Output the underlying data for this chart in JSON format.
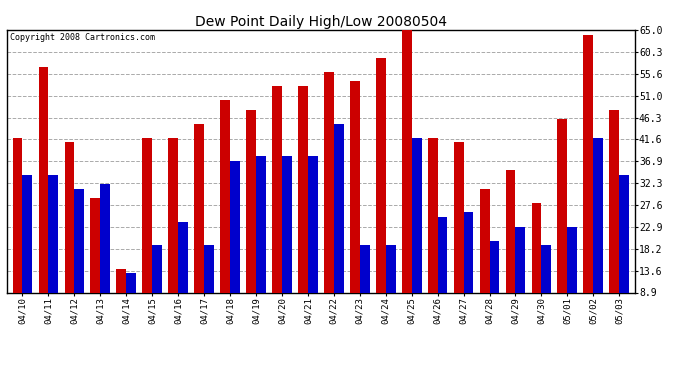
{
  "title": "Dew Point Daily High/Low 20080504",
  "copyright": "Copyright 2008 Cartronics.com",
  "dates": [
    "04/10",
    "04/11",
    "04/12",
    "04/13",
    "04/14",
    "04/15",
    "04/16",
    "04/17",
    "04/18",
    "04/19",
    "04/20",
    "04/21",
    "04/22",
    "04/23",
    "04/24",
    "04/25",
    "04/26",
    "04/27",
    "04/28",
    "04/29",
    "04/30",
    "05/01",
    "05/02",
    "05/03"
  ],
  "highs": [
    42,
    57,
    41,
    29,
    14,
    42,
    42,
    45,
    50,
    48,
    53,
    53,
    56,
    54,
    59,
    65,
    42,
    41,
    31,
    35,
    28,
    46,
    64,
    48
  ],
  "lows": [
    34,
    34,
    31,
    32,
    13,
    19,
    24,
    19,
    37,
    38,
    38,
    38,
    45,
    19,
    19,
    42,
    25,
    26,
    20,
    23,
    19,
    23,
    42,
    34
  ],
  "high_color": "#cc0000",
  "low_color": "#0000cc",
  "bg_color": "#ffffff",
  "plot_bg_color": "#ffffff",
  "grid_color": "#aaaaaa",
  "yticks": [
    8.9,
    13.6,
    18.2,
    22.9,
    27.6,
    32.3,
    36.9,
    41.6,
    46.3,
    51.0,
    55.6,
    60.3,
    65.0
  ],
  "ymin": 8.9,
  "ymax": 65.0,
  "figwidth": 6.9,
  "figheight": 3.75,
  "dpi": 100
}
